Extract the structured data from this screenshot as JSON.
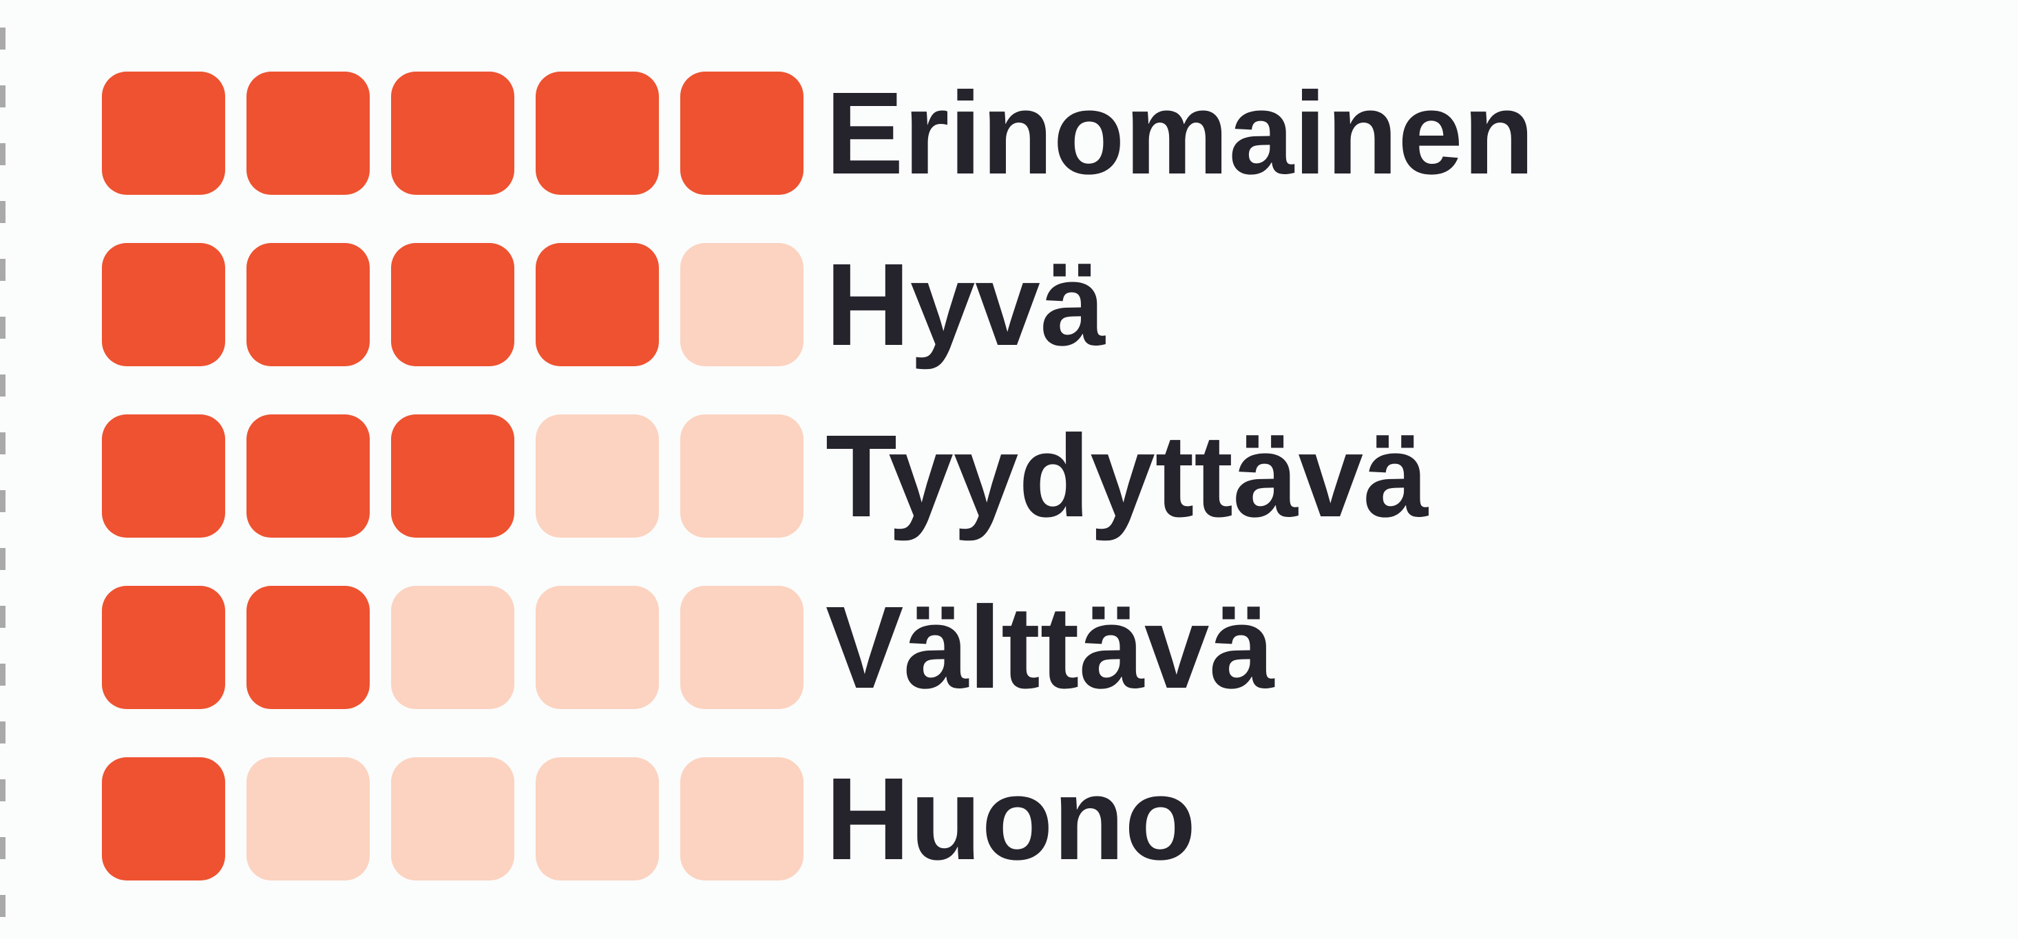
{
  "legend": {
    "max_score": 5,
    "filled_color": "#ee5230",
    "empty_color": "#fbd3c0",
    "items": [
      {
        "label": "Erinomainen",
        "score": 5
      },
      {
        "label": "Hyvä",
        "score": 4
      },
      {
        "label": "Tyydyttävä",
        "score": 3
      },
      {
        "label": "Välttävä",
        "score": 2
      },
      {
        "label": "Huono",
        "score": 1
      }
    ]
  }
}
